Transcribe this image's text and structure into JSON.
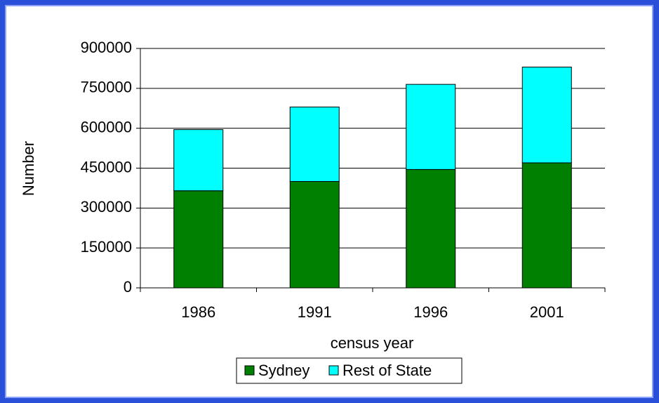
{
  "chart_data": {
    "type": "stacked_bar",
    "categories": [
      "1986",
      "1991",
      "1996",
      "2001"
    ],
    "series": [
      {
        "name": "Sydney",
        "color": "#008000",
        "values": [
          365000,
          400000,
          445000,
          470000
        ]
      },
      {
        "name": "Rest of State",
        "color": "#00ffff",
        "values": [
          230000,
          280000,
          320000,
          360000
        ]
      }
    ],
    "x_label": "census year",
    "y_label": "Number",
    "ylim": [
      0,
      900000
    ],
    "yticks": [
      0,
      150000,
      300000,
      450000,
      600000,
      750000,
      900000
    ],
    "grid": true,
    "legend": "bottom"
  }
}
